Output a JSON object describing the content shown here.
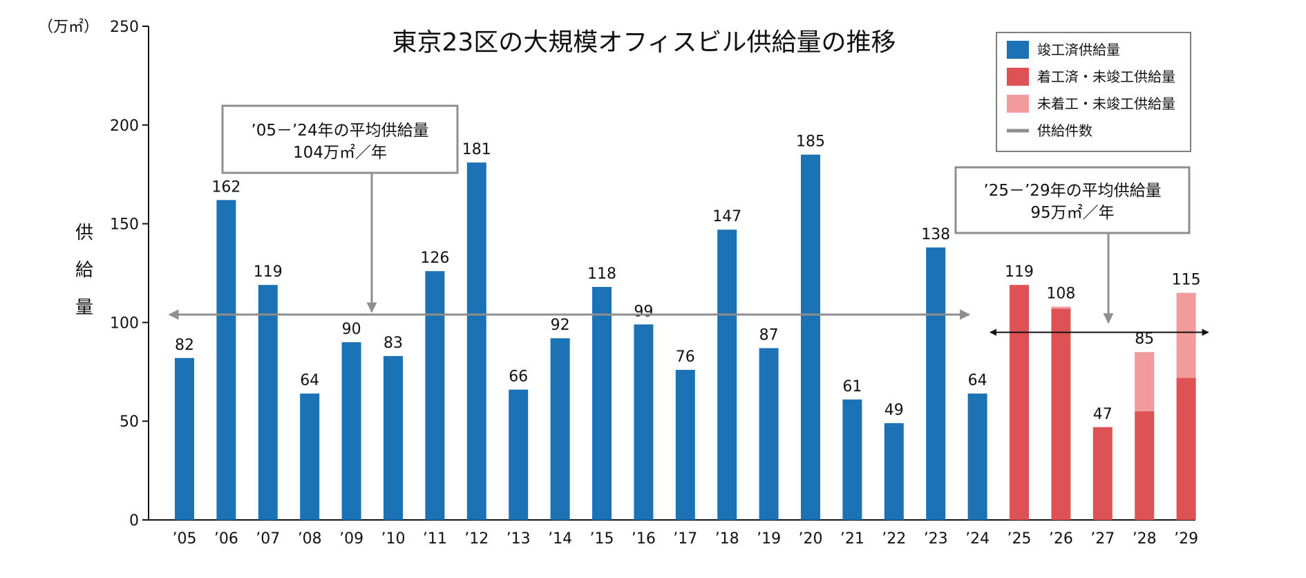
{
  "colors": {
    "completed": "#1b72b5",
    "started": "#df5254",
    "not_started": "#f29a9c",
    "avg_line": "#8e8e8e",
    "axis": "#111111"
  },
  "chart_data": {
    "type": "bar",
    "title": "東京23区の大規模オフィスビル供給量の推移",
    "unit": "（万㎡）",
    "ylabel": "供給量",
    "ylabel_chars": [
      "供",
      "給",
      "量"
    ],
    "ylim": [
      0,
      250
    ],
    "yticks": [
      0,
      50,
      100,
      150,
      200,
      250
    ],
    "categories": [
      "’05",
      "’06",
      "’07",
      "’08",
      "’09",
      "’10",
      "’11",
      "’12",
      "’13",
      "’14",
      "’15",
      "’16",
      "’17",
      "’18",
      "’19",
      "’20",
      "’21",
      "’22",
      "’23",
      "’24",
      "’25",
      "’26",
      "’27",
      "’28",
      "’29"
    ],
    "series": [
      {
        "name": "竣工済供給量",
        "key": "completed",
        "values": [
          82,
          162,
          119,
          64,
          90,
          83,
          126,
          181,
          66,
          92,
          118,
          99,
          76,
          147,
          87,
          185,
          61,
          49,
          138,
          64,
          0,
          0,
          0,
          0,
          0
        ]
      },
      {
        "name": "着工済・未竣工供給量",
        "key": "started",
        "values": [
          0,
          0,
          0,
          0,
          0,
          0,
          0,
          0,
          0,
          0,
          0,
          0,
          0,
          0,
          0,
          0,
          0,
          0,
          0,
          0,
          119,
          107,
          47,
          55,
          72
        ]
      },
      {
        "name": "未着工・未竣工供給量",
        "key": "not_started",
        "values": [
          0,
          0,
          0,
          0,
          0,
          0,
          0,
          0,
          0,
          0,
          0,
          0,
          0,
          0,
          0,
          0,
          0,
          0,
          0,
          0,
          0,
          1,
          0,
          30,
          43
        ]
      }
    ],
    "totals": [
      82,
      162,
      119,
      64,
      90,
      83,
      126,
      181,
      66,
      92,
      118,
      99,
      76,
      147,
      87,
      185,
      61,
      49,
      138,
      64,
      119,
      108,
      47,
      85,
      115
    ],
    "legend": [
      {
        "label": "竣工済供給量",
        "key": "completed",
        "shape": "box"
      },
      {
        "label": "着工済・未竣工供給量",
        "key": "started",
        "shape": "box"
      },
      {
        "label": "未着工・未竣工供給量",
        "key": "not_started",
        "shape": "box"
      },
      {
        "label": "供給件数",
        "key": "avg_line",
        "shape": "line"
      }
    ],
    "legend_position": "top-right",
    "annotations": [
      {
        "lines": [
          "’05－’24年の平均供給量",
          "104万㎡／年"
        ],
        "avg_value": 104,
        "range": [
          "’05",
          "’24"
        ]
      },
      {
        "lines": [
          "’25－’29年の平均供給量",
          "95万㎡／年"
        ],
        "avg_value": 95,
        "range": [
          "’25",
          "’29"
        ]
      }
    ]
  }
}
